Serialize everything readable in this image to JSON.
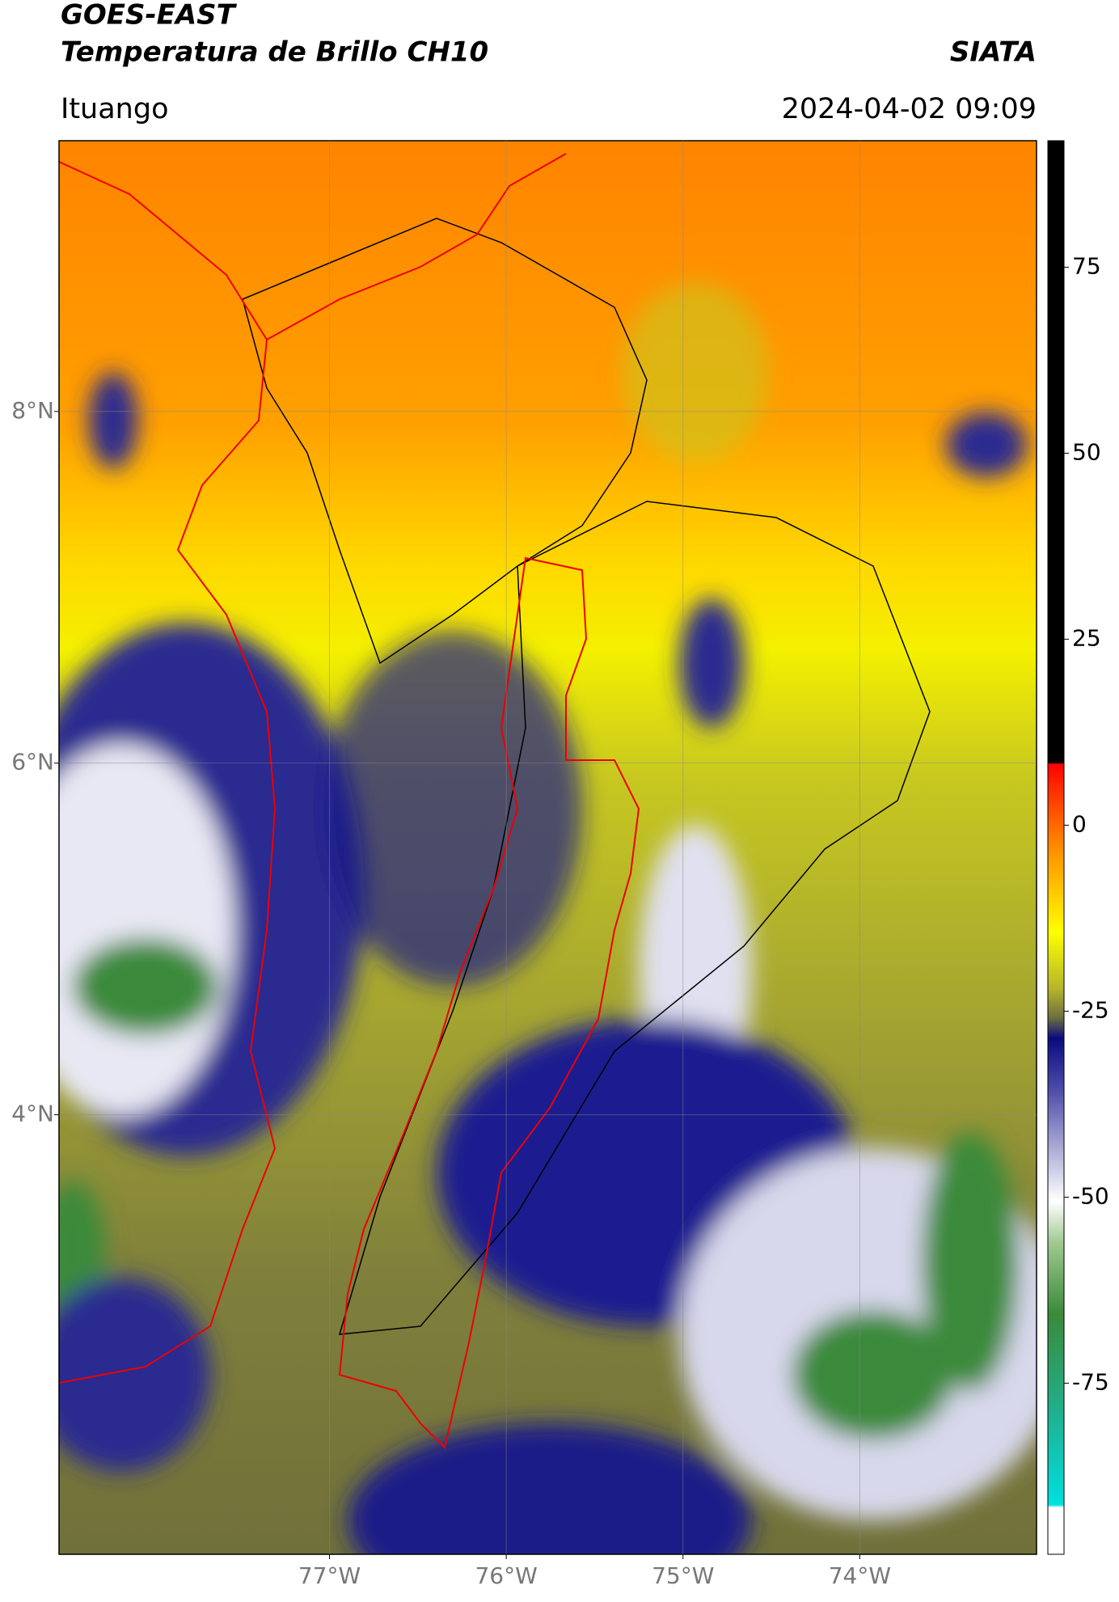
{
  "header": {
    "title": "GOES-EAST",
    "subtitle": "Temperatura de Brillo CH10",
    "source": "SIATA",
    "location": "Ituango",
    "datetime": "2024-04-02 09:09"
  },
  "map": {
    "lat_lim": [
      1.5,
      9.54
    ],
    "lon_lim": [
      -78.53,
      -73.0
    ],
    "lat_ticks": [
      {
        "value": 8,
        "label": "8°N"
      },
      {
        "value": 6,
        "label": "6°N"
      },
      {
        "value": 4,
        "label": "4°N"
      }
    ],
    "lon_ticks": [
      {
        "value": -77,
        "label": "77°W"
      },
      {
        "value": -76,
        "label": "76°W"
      },
      {
        "value": -75,
        "label": "75°W"
      },
      {
        "value": -74,
        "label": "74°W"
      }
    ]
  },
  "colorbar": {
    "lim": [
      -98,
      92
    ],
    "ticks": [
      75,
      50,
      25,
      0,
      -25,
      -50,
      -75
    ]
  }
}
